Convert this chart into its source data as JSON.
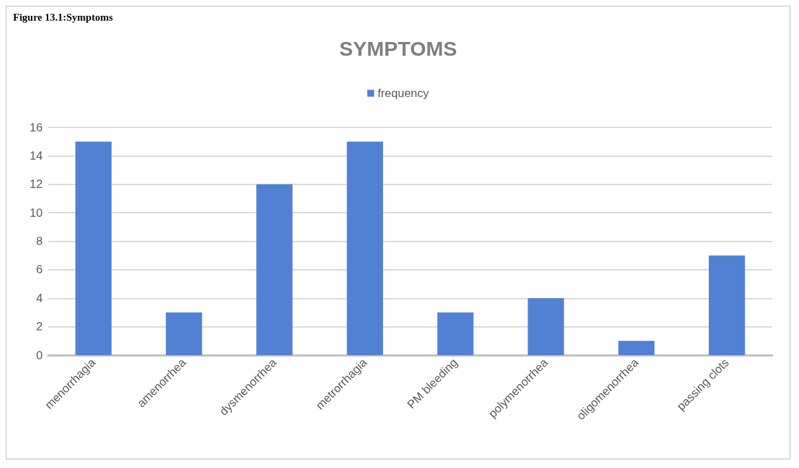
{
  "chart_data": {
    "type": "bar",
    "title": "SYMPTOMS",
    "annotations": [
      "Figure 13.1:Symptoms"
    ],
    "categories": [
      "menorrhagia",
      "amenorrhea",
      "dysmenorrhea",
      "metrorrhagia",
      "PM bleeding",
      "polymenorrhea",
      "oligomenorrhea",
      "passing clots"
    ],
    "series": [
      {
        "name": "frequency",
        "color": "#5281d4",
        "values": [
          15,
          3,
          12,
          15,
          3,
          4,
          1,
          7
        ]
      }
    ],
    "ylim": [
      0,
      16
    ],
    "yticks": [
      0,
      2,
      4,
      6,
      8,
      10,
      12,
      14,
      16
    ],
    "grid": "y",
    "legend": "top"
  }
}
